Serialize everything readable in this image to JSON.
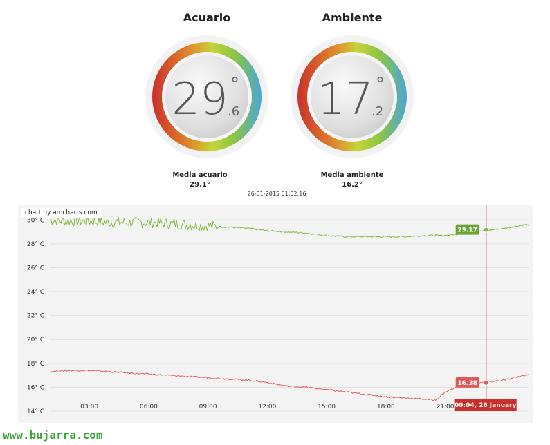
{
  "gauges": [
    {
      "title": "Acuario",
      "big": "29",
      "decimal": ".6",
      "degree": "°",
      "avg_label": "Media acuario",
      "avg_value": "29.1°"
    },
    {
      "title": "Ambiente",
      "big": "17",
      "decimal": ".2",
      "degree": "°",
      "avg_label": "Media ambiente",
      "avg_value": "16.2°"
    }
  ],
  "timestamp": "26-01-2015 01:02:16",
  "credit": "chart by amcharts.com",
  "footer": "www.bujarra.com",
  "colors": {
    "acuario": "#7fb83a",
    "ambiente": "#e05a5a",
    "cursor": "#c9302c",
    "balloon_green": "#6aa534",
    "balloon_red": "#e05a5a"
  },
  "chart_data": {
    "type": "line",
    "y_tick_labels": [
      "30° C",
      "28° C",
      "26° C",
      "24° C",
      "22° C",
      "20° C",
      "18° C",
      "16° C",
      "14° C"
    ],
    "y_ticks": [
      30,
      28,
      26,
      24,
      22,
      20,
      18,
      16,
      14
    ],
    "ylim": [
      14,
      31
    ],
    "x_tick_labels": [
      "03:00",
      "06:00",
      "09:00",
      "12:00",
      "15:00",
      "18:00",
      "21:00"
    ],
    "x_ticks": [
      3,
      6,
      9,
      12,
      15,
      18,
      21
    ],
    "xlim": [
      1.0,
      25.25
    ],
    "grid": true,
    "series": [
      {
        "color": "#7fb83a",
        "x": [
          1.0,
          2.0,
          3.0,
          4.0,
          5.0,
          6.0,
          7.0,
          8.0,
          9.0,
          10.0,
          11.0,
          12.0,
          13.0,
          14.0,
          15.0,
          16.0,
          17.0,
          18.0,
          19.0,
          20.0,
          21.0,
          22.0,
          23.0,
          24.0,
          25.0,
          25.25
        ],
        "y": [
          30.0,
          29.9,
          29.9,
          29.8,
          29.8,
          29.8,
          29.7,
          29.6,
          29.5,
          29.4,
          29.3,
          29.1,
          29.0,
          28.9,
          28.7,
          28.6,
          28.6,
          28.6,
          28.6,
          28.7,
          28.7,
          28.9,
          29.1,
          29.3,
          29.6,
          29.6
        ],
        "noise_until": 9.5,
        "cursor_value": "29.17"
      },
      {
        "color": "#e05a5a",
        "x": [
          1.0,
          2.0,
          3.0,
          4.0,
          5.0,
          6.0,
          7.0,
          8.0,
          9.0,
          10.0,
          11.0,
          12.0,
          13.0,
          14.0,
          15.0,
          16.0,
          17.0,
          18.0,
          19.0,
          20.0,
          20.5,
          21.0,
          22.0,
          23.0,
          24.0,
          25.0,
          25.25
        ],
        "y": [
          17.3,
          17.4,
          17.4,
          17.3,
          17.2,
          17.1,
          17.0,
          16.9,
          16.8,
          16.7,
          16.6,
          16.4,
          16.1,
          16.0,
          15.8,
          15.6,
          15.4,
          15.2,
          15.1,
          15.0,
          14.9,
          15.6,
          16.3,
          16.4,
          16.6,
          17.0,
          17.1
        ],
        "cursor_value": "16.38"
      }
    ],
    "cursor": {
      "x": 23.07,
      "label": "00:04, 26 January"
    }
  }
}
